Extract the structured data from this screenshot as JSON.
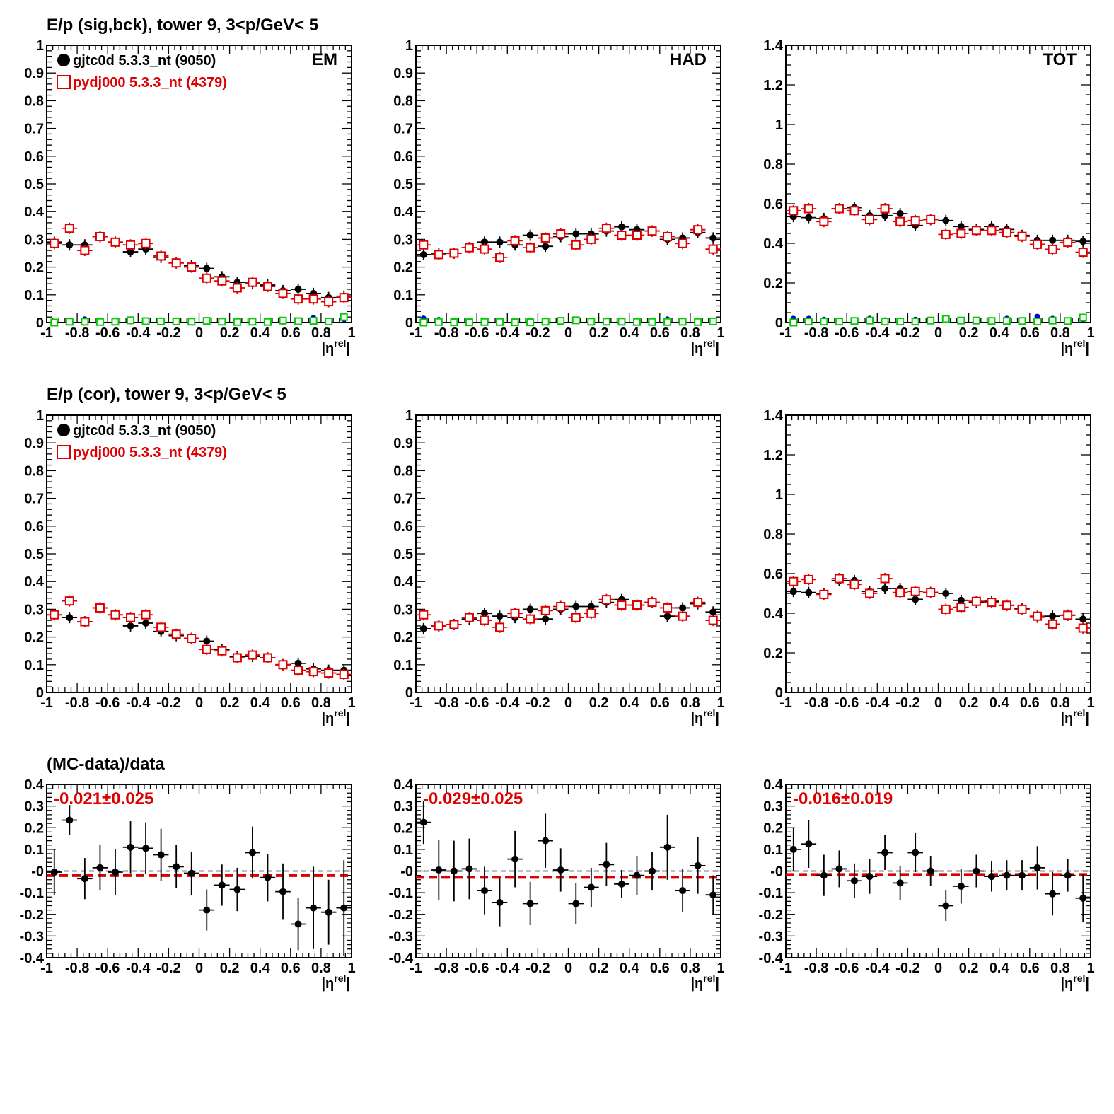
{
  "colors": {
    "data": "#000000",
    "mc": "#dd0000",
    "bkg_data": "#0000dd",
    "bkg_mc": "#00cc00",
    "fit": "#dd0000"
  },
  "row_titles": [
    "E/p (sig,bck), tower 9,  3<p/GeV< 5",
    "E/p (cor), tower 9,  3<p/GeV< 5",
    "(MC-data)/data"
  ],
  "panel_labels": [
    "EM",
    "HAD",
    "TOT"
  ],
  "legend": {
    "data": "gjtc0d 5.3.3_nt (9050)",
    "mc": "pydj000 5.3.3_nt (4379)"
  },
  "ratio_texts": [
    "-0.021±0.025",
    "-0.029±0.025",
    "-0.016±0.019"
  ],
  "x_axis": {
    "label_main": "|η",
    "label_sup": "rel",
    "label_end": "|",
    "ticks": [
      "-1",
      "-0.8",
      "-0.6",
      "-0.4",
      "-0.2",
      "0",
      "0.2",
      "0.4",
      "0.6",
      "0.8",
      "1"
    ]
  },
  "y_axes": {
    "em_had": {
      "ylim": [
        0,
        1
      ],
      "ticks": [
        "0",
        "0.1",
        "0.2",
        "0.3",
        "0.4",
        "0.5",
        "0.6",
        "0.7",
        "0.8",
        "0.9",
        "1"
      ]
    },
    "tot": {
      "ylim": [
        0,
        1.4
      ],
      "ticks": [
        "0",
        "0.2",
        "0.4",
        "0.6",
        "0.8",
        "1",
        "1.2",
        "1.4"
      ]
    },
    "ratio": {
      "ylim": [
        -0.4,
        0.4
      ],
      "ticks": [
        "-0.4",
        "-0.3",
        "-0.2",
        "-0.1",
        "-0",
        "0.1",
        "0.2",
        "0.3",
        "0.4"
      ]
    }
  },
  "chart_data": {
    "type": "scatter",
    "x": [
      -0.95,
      -0.85,
      -0.75,
      -0.65,
      -0.55,
      -0.45,
      -0.35,
      -0.25,
      -0.15,
      -0.05,
      0.05,
      0.15,
      0.25,
      0.35,
      0.45,
      0.55,
      0.65,
      0.75,
      0.85,
      0.95
    ],
    "xlim": [
      -1,
      1
    ],
    "panels": [
      {
        "row": 0,
        "col": 0,
        "axis": "em_had",
        "label": "EM",
        "legend": true,
        "series": [
          {
            "role": "data",
            "marker": "dot",
            "values": [
              0.29,
              0.28,
              0.28,
              0.31,
              0.29,
              0.255,
              0.265,
              0.235,
              0.215,
              0.205,
              0.195,
              0.165,
              0.145,
              0.14,
              0.135,
              0.115,
              0.12,
              0.105,
              0.09,
              0.095
            ]
          },
          {
            "role": "mc",
            "marker": "square",
            "values": [
              0.285,
              0.34,
              0.26,
              0.31,
              0.29,
              0.28,
              0.285,
              0.24,
              0.215,
              0.2,
              0.16,
              0.15,
              0.125,
              0.145,
              0.13,
              0.105,
              0.085,
              0.085,
              0.075,
              0.09
            ]
          },
          {
            "role": "bkg_data",
            "marker": "dot",
            "values": [
              0.003,
              0.003,
              0.012,
              0.005,
              0.005,
              0.004,
              0.003,
              0.005,
              0.004,
              0.004,
              0.004,
              0.005,
              0.005,
              0.004,
              0.005,
              0.003,
              0.008,
              0.017,
              0.005,
              0.012
            ]
          },
          {
            "role": "bkg_mc",
            "marker": "square",
            "values": [
              0.0,
              0.003,
              0.003,
              0.002,
              0.003,
              0.008,
              0.005,
              0.004,
              0.004,
              0.003,
              0.006,
              0.003,
              0.002,
              0.003,
              0.002,
              0.007,
              0.005,
              0.006,
              0.004,
              0.02
            ]
          }
        ]
      },
      {
        "row": 0,
        "col": 1,
        "axis": "em_had",
        "label": "HAD",
        "series": [
          {
            "role": "data",
            "marker": "dot",
            "values": [
              0.245,
              0.25,
              0.25,
              0.27,
              0.29,
              0.29,
              0.28,
              0.315,
              0.275,
              0.31,
              0.32,
              0.32,
              0.33,
              0.345,
              0.335,
              0.33,
              0.3,
              0.305,
              0.325,
              0.305
            ]
          },
          {
            "role": "mc",
            "marker": "square",
            "values": [
              0.28,
              0.245,
              0.25,
              0.27,
              0.265,
              0.235,
              0.295,
              0.27,
              0.305,
              0.32,
              0.28,
              0.3,
              0.34,
              0.315,
              0.315,
              0.33,
              0.31,
              0.285,
              0.335,
              0.265
            ]
          },
          {
            "role": "bkg_data",
            "marker": "dot",
            "values": [
              0.015,
              0.01,
              0.005,
              0.003,
              0.005,
              0.007,
              0.002,
              0.004,
              0.005,
              0.003,
              0.006,
              0.004,
              0.004,
              0.003,
              0.008,
              0.003,
              0.012,
              0.005,
              0.003,
              0.006
            ]
          },
          {
            "role": "bkg_mc",
            "marker": "square",
            "values": [
              0.0,
              0.002,
              0.001,
              0.001,
              0.002,
              0.002,
              0.001,
              0.001,
              0.003,
              0.006,
              0.008,
              0.003,
              0.003,
              0.003,
              0.002,
              0.002,
              0.002,
              0.003,
              0.002,
              0.004
            ]
          }
        ]
      },
      {
        "row": 0,
        "col": 2,
        "axis": "tot",
        "label": "TOT",
        "series": [
          {
            "role": "data",
            "marker": "dot",
            "values": [
              0.535,
              0.53,
              0.525,
              0.575,
              0.58,
              0.54,
              0.54,
              0.55,
              0.49,
              0.52,
              0.515,
              0.485,
              0.47,
              0.485,
              0.47,
              0.44,
              0.415,
              0.415,
              0.415,
              0.41
            ]
          },
          {
            "role": "mc",
            "marker": "square",
            "values": [
              0.565,
              0.575,
              0.51,
              0.575,
              0.565,
              0.52,
              0.575,
              0.51,
              0.515,
              0.52,
              0.445,
              0.45,
              0.465,
              0.465,
              0.455,
              0.435,
              0.395,
              0.37,
              0.405,
              0.355
            ]
          },
          {
            "role": "bkg_data",
            "marker": "dot",
            "values": [
              0.02,
              0.02,
              0.015,
              0.01,
              0.01,
              0.02,
              0.012,
              0.01,
              0.015,
              0.01,
              0.015,
              0.012,
              0.01,
              0.01,
              0.02,
              0.01,
              0.03,
              0.02,
              0.01,
              0.015
            ]
          },
          {
            "role": "bkg_mc",
            "marker": "square",
            "values": [
              0.0,
              0.005,
              0.005,
              0.005,
              0.008,
              0.01,
              0.005,
              0.005,
              0.005,
              0.01,
              0.018,
              0.01,
              0.01,
              0.008,
              0.008,
              0.008,
              0.005,
              0.01,
              0.008,
              0.025
            ]
          }
        ]
      },
      {
        "row": 1,
        "col": 0,
        "axis": "em_had",
        "legend": true,
        "series": [
          {
            "role": "data",
            "marker": "dot",
            "values": [
              0.28,
              0.27,
              0.255,
              0.305,
              0.28,
              0.24,
              0.25,
              0.22,
              0.205,
              0.195,
              0.185,
              0.155,
              0.13,
              0.13,
              0.125,
              0.1,
              0.105,
              0.085,
              0.08,
              0.08
            ]
          },
          {
            "role": "mc",
            "marker": "square",
            "values": [
              0.28,
              0.33,
              0.255,
              0.305,
              0.28,
              0.27,
              0.28,
              0.235,
              0.21,
              0.195,
              0.155,
              0.15,
              0.125,
              0.135,
              0.125,
              0.1,
              0.08,
              0.075,
              0.07,
              0.065
            ]
          }
        ]
      },
      {
        "row": 1,
        "col": 1,
        "axis": "em_had",
        "series": [
          {
            "role": "data",
            "marker": "dot",
            "values": [
              0.23,
              0.24,
              0.245,
              0.265,
              0.285,
              0.275,
              0.27,
              0.3,
              0.265,
              0.3,
              0.31,
              0.31,
              0.325,
              0.335,
              0.315,
              0.325,
              0.275,
              0.305,
              0.32,
              0.29
            ]
          },
          {
            "role": "mc",
            "marker": "square",
            "values": [
              0.28,
              0.24,
              0.245,
              0.27,
              0.26,
              0.235,
              0.285,
              0.265,
              0.295,
              0.31,
              0.27,
              0.285,
              0.335,
              0.315,
              0.315,
              0.325,
              0.305,
              0.275,
              0.325,
              0.26
            ]
          }
        ]
      },
      {
        "row": 1,
        "col": 2,
        "axis": "tot",
        "series": [
          {
            "role": "data",
            "marker": "dot",
            "values": [
              0.51,
              0.505,
              0.5,
              0.565,
              0.565,
              0.51,
              0.525,
              0.525,
              0.47,
              0.505,
              0.5,
              0.465,
              0.455,
              0.46,
              0.44,
              0.425,
              0.38,
              0.385,
              0.39,
              0.37
            ]
          },
          {
            "role": "mc",
            "marker": "square",
            "values": [
              0.56,
              0.57,
              0.495,
              0.575,
              0.545,
              0.5,
              0.575,
              0.505,
              0.51,
              0.505,
              0.42,
              0.43,
              0.46,
              0.455,
              0.44,
              0.42,
              0.385,
              0.345,
              0.39,
              0.325
            ]
          }
        ]
      },
      {
        "row": 2,
        "col": 0,
        "axis": "ratio",
        "ratio_index": 0,
        "fit": -0.021,
        "series": [
          {
            "role": "data",
            "marker": "dot",
            "values": [
              -0.005,
              0.235,
              -0.035,
              0.015,
              -0.005,
              0.11,
              0.105,
              0.075,
              0.02,
              -0.01,
              -0.18,
              -0.065,
              -0.085,
              0.085,
              -0.03,
              -0.095,
              -0.245,
              -0.17,
              -0.19,
              -0.17
            ],
            "errors": [
              0.105,
              0.07,
              0.095,
              0.105,
              0.105,
              0.12,
              0.12,
              0.12,
              0.1,
              0.1,
              0.095,
              0.095,
              0.1,
              0.12,
              0.11,
              0.13,
              0.12,
              0.19,
              0.15,
              0.22
            ]
          }
        ]
      },
      {
        "row": 2,
        "col": 1,
        "axis": "ratio",
        "ratio_index": 1,
        "fit": -0.029,
        "series": [
          {
            "role": "data",
            "marker": "dot",
            "values": [
              0.225,
              0.005,
              0.0,
              0.01,
              -0.09,
              -0.145,
              0.055,
              -0.15,
              0.14,
              0.005,
              -0.15,
              -0.075,
              0.03,
              -0.06,
              -0.02,
              0.0,
              0.11,
              -0.09,
              0.025,
              -0.11
            ],
            "errors": [
              0.1,
              0.14,
              0.14,
              0.14,
              0.11,
              0.11,
              0.13,
              0.1,
              0.125,
              0.1,
              0.095,
              0.09,
              0.1,
              0.065,
              0.09,
              0.09,
              0.15,
              0.1,
              0.13,
              0.09
            ]
          }
        ]
      },
      {
        "row": 2,
        "col": 2,
        "axis": "ratio",
        "ratio_index": 2,
        "fit": -0.016,
        "series": [
          {
            "role": "data",
            "marker": "dot",
            "values": [
              0.1,
              0.125,
              -0.02,
              0.01,
              -0.045,
              -0.025,
              0.085,
              -0.055,
              0.085,
              0.0,
              -0.16,
              -0.07,
              0.0,
              -0.025,
              -0.02,
              -0.02,
              0.015,
              -0.105,
              -0.02,
              -0.125
            ],
            "errors": [
              0.1,
              0.11,
              0.095,
              0.085,
              0.08,
              0.08,
              0.08,
              0.08,
              0.09,
              0.07,
              0.07,
              0.08,
              0.075,
              0.07,
              0.07,
              0.07,
              0.1,
              0.1,
              0.075,
              0.11
            ]
          }
        ]
      }
    ]
  }
}
